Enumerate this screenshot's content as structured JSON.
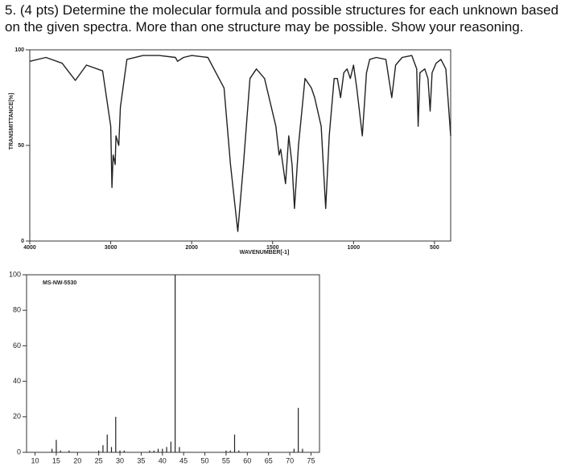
{
  "question": "5.  (4 pts) Determine the molecular formula and possible structures for each unknown based on the given spectra. More than one structure may be possible. Show your reasoning.",
  "chart_data": [
    {
      "type": "line",
      "xlabel": "WAVENUMBER[-1]",
      "ylabel": "TRANSMITTANCE[%]",
      "color": "#222",
      "xlim": [
        4000,
        400
      ],
      "xticks": [
        4000,
        3000,
        2000,
        1500,
        1000,
        500
      ],
      "x_break": 2000,
      "x_break_factor": 2,
      "ylim": [
        0,
        100
      ],
      "yticks": [
        0,
        50,
        100
      ],
      "x": [
        4000,
        3800,
        3600,
        3437,
        3300,
        3100,
        3000,
        2985,
        2970,
        2945,
        2935,
        2900,
        2880,
        2800,
        2600,
        2400,
        2200,
        2175,
        2100,
        2000,
        1900,
        1800,
        1760,
        1715,
        1680,
        1640,
        1600,
        1550,
        1480,
        1460,
        1450,
        1420,
        1400,
        1380,
        1365,
        1340,
        1300,
        1260,
        1240,
        1200,
        1172,
        1150,
        1120,
        1100,
        1080,
        1060,
        1040,
        1020,
        1000,
        980,
        946,
        920,
        900,
        860,
        800,
        764,
        740,
        700,
        640,
        610,
        601,
        590,
        560,
        540,
        527,
        515,
        490,
        460,
        430,
        400
      ],
      "values": [
        94,
        96,
        93,
        84,
        92,
        89,
        60,
        28,
        45,
        40,
        55,
        50,
        70,
        95,
        97,
        97,
        96,
        94,
        96,
        97,
        96,
        80,
        40,
        5,
        40,
        85,
        90,
        85,
        60,
        45,
        48,
        30,
        55,
        40,
        17,
        50,
        85,
        80,
        75,
        60,
        17,
        55,
        85,
        85,
        75,
        88,
        90,
        85,
        92,
        80,
        55,
        88,
        95,
        96,
        95,
        75,
        92,
        96,
        97,
        90,
        60,
        88,
        90,
        85,
        68,
        88,
        93,
        95,
        90,
        55
      ]
    },
    {
      "type": "bar",
      "label": "MS-NW-5530",
      "color": "#222",
      "xlim": [
        8,
        77
      ],
      "xticks": [
        10,
        15,
        20,
        25,
        30,
        35,
        40,
        45,
        50,
        55,
        60,
        65,
        70,
        75
      ],
      "ylim": [
        0,
        100
      ],
      "yticks": [
        0,
        20,
        40,
        60,
        80,
        100
      ],
      "x": [
        14,
        15,
        16,
        18,
        25,
        26,
        27,
        28,
        29,
        30,
        31,
        37,
        38,
        39,
        40,
        41,
        42,
        43,
        44,
        55,
        56,
        57,
        58,
        71,
        72,
        73
      ],
      "values": [
        2,
        7,
        1,
        1,
        1,
        4,
        10,
        3,
        20,
        1,
        1,
        1,
        1,
        2,
        2,
        3,
        6,
        100,
        3,
        1,
        1,
        10,
        1,
        2,
        25,
        2
      ]
    }
  ]
}
